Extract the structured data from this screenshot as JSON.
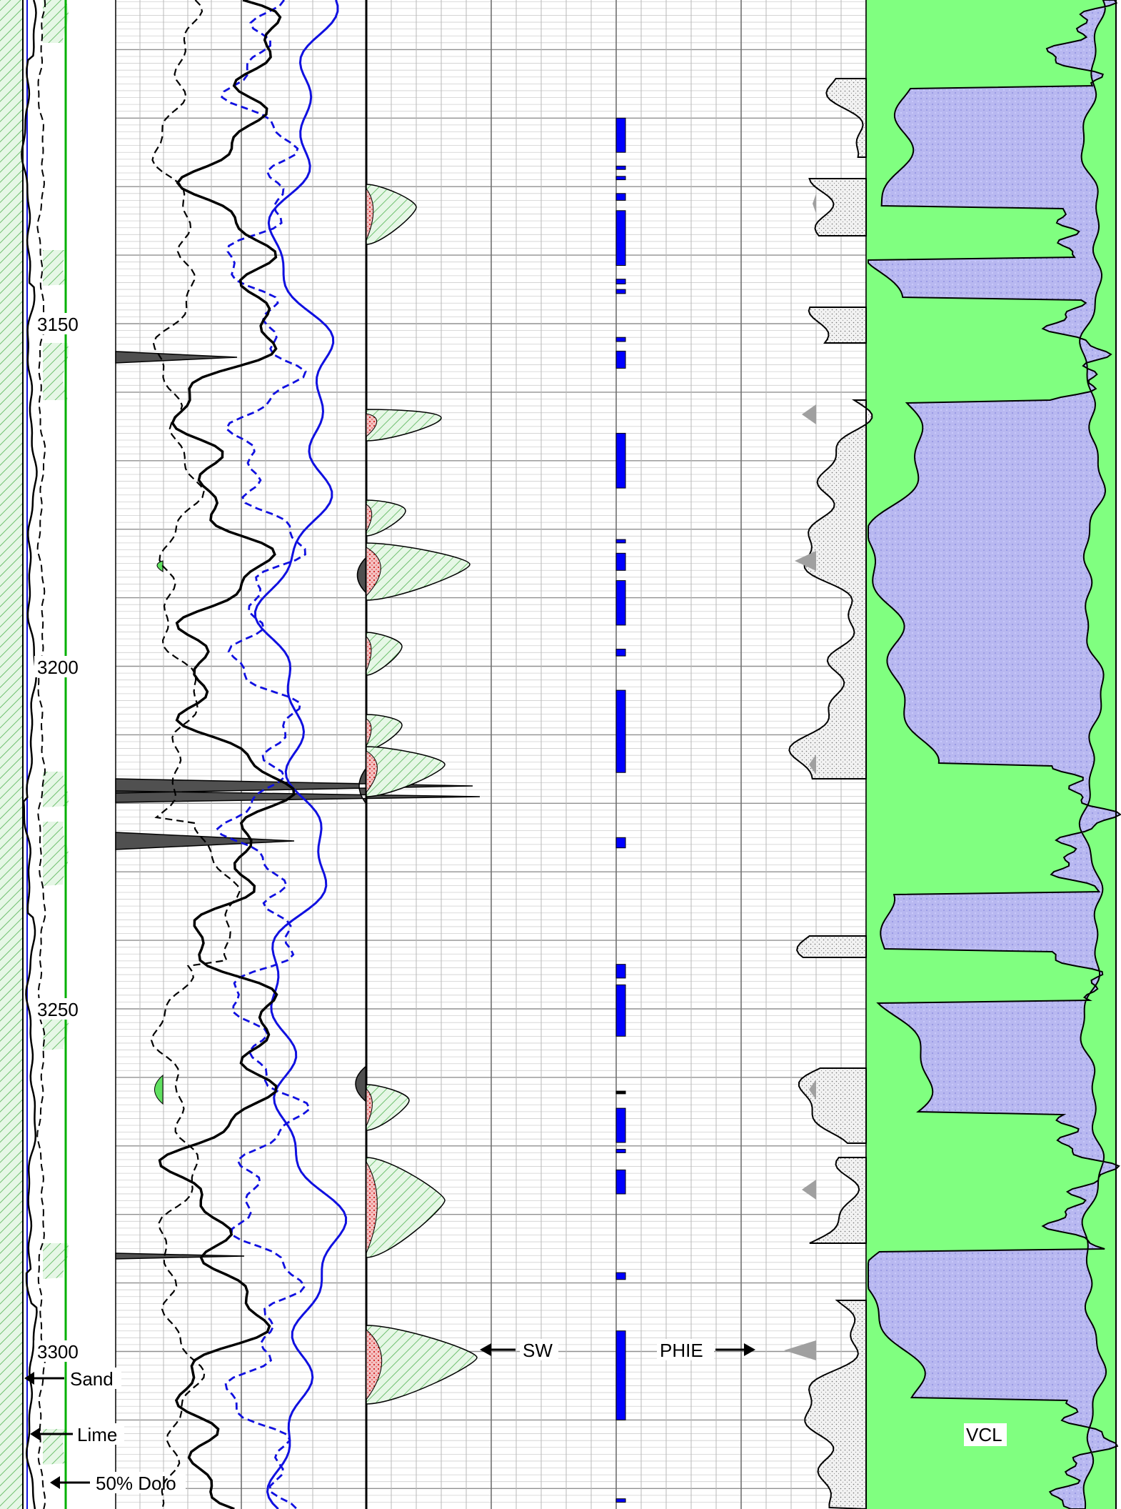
{
  "depth_track": {
    "ticks": [
      {
        "depth": "3150"
      },
      {
        "depth": "3200"
      },
      {
        "depth": "3250"
      },
      {
        "depth": "3300"
      }
    ]
  },
  "annotations": {
    "sand": "Sand",
    "lime": "Lime",
    "dolo": "50% Dolo",
    "sw": "SW",
    "phie": "PHIE",
    "vcl": "VCL"
  },
  "colors": {
    "green_line": "#00b000",
    "green_fill": "#80ff80",
    "hatch_fill": "#c8f0c8",
    "blue_line": "#1010e0",
    "blue_bar": "#0000ff",
    "dark_fill": "#505050",
    "clay_fill": "#b8b8f0",
    "stipple_fill": "#e8e8e8",
    "red_fill": "#e04040",
    "grid": "#b0b0b0"
  },
  "pay_flags": [
    {
      "top": 3120,
      "base": 3125
    },
    {
      "top": 3127,
      "base": 3127.5
    },
    {
      "top": 3128.5,
      "base": 3129
    },
    {
      "top": 3131,
      "base": 3132
    },
    {
      "top": 3133.5,
      "base": 3141.5
    },
    {
      "top": 3143.5,
      "base": 3144.2
    },
    {
      "top": 3145,
      "base": 3145.6
    },
    {
      "top": 3152,
      "base": 3152.6
    },
    {
      "top": 3154,
      "base": 3156.5
    },
    {
      "top": 3166,
      "base": 3174
    },
    {
      "top": 3181.5,
      "base": 3182
    },
    {
      "top": 3183.5,
      "base": 3186
    },
    {
      "top": 3187.5,
      "base": 3194
    },
    {
      "top": 3197.5,
      "base": 3198.5
    },
    {
      "top": 3203.5,
      "base": 3215.5
    },
    {
      "top": 3225,
      "base": 3226.5
    },
    {
      "top": 3243.5,
      "base": 3245.5
    },
    {
      "top": 3246.5,
      "base": 3254
    },
    {
      "top": 3262,
      "base": 3262.4
    },
    {
      "top": 3264.5,
      "base": 3269.5
    },
    {
      "top": 3270.5,
      "base": 3271
    },
    {
      "top": 3273.5,
      "base": 3277
    },
    {
      "top": 3288.5,
      "base": 3289.5
    },
    {
      "top": 3297,
      "base": 3310
    },
    {
      "top": 3321.5,
      "base": 3322
    }
  ]
}
